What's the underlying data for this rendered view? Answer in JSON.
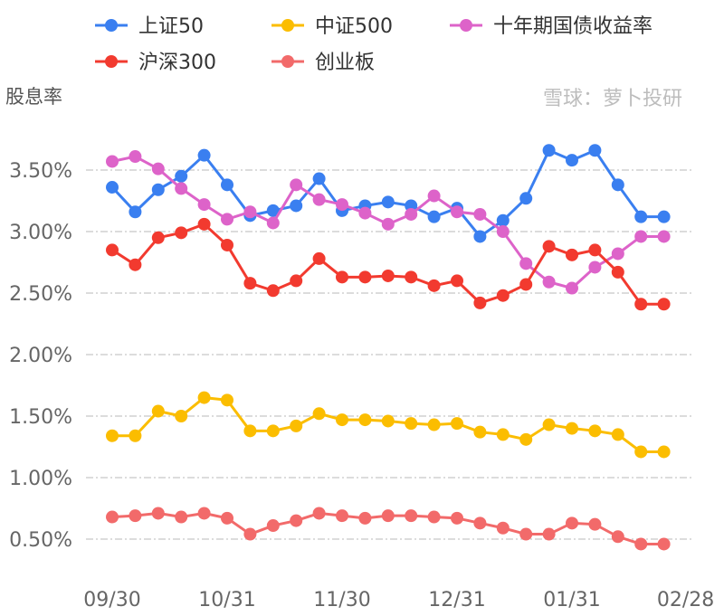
{
  "watermark": "雪球：萝卜投研",
  "chart_data": {
    "type": "line",
    "title": "",
    "xlabel": "",
    "ylabel": "股息率",
    "ylim": [
      0.5,
      3.5
    ],
    "yticks": [
      "0.50%",
      "1.00%",
      "1.50%",
      "2.00%",
      "2.50%",
      "3.00%",
      "3.50%"
    ],
    "ytick_values": [
      0.5,
      1.0,
      1.5,
      2.0,
      2.5,
      3.0,
      3.5
    ],
    "grid": "horizontal dash-dot",
    "legend_position": "top",
    "xticks": [
      {
        "index": 0,
        "label": "09/30"
      },
      {
        "index": 5,
        "label": "10/31"
      },
      {
        "index": 10,
        "label": "11/30"
      },
      {
        "index": 15,
        "label": "12/31"
      },
      {
        "index": 20,
        "label": "01/31"
      },
      {
        "index": 24,
        "label": "02/28"
      }
    ],
    "point_count": 25,
    "series": [
      {
        "name": "上证50",
        "color": "#3a7ff0",
        "values": [
          3.36,
          3.16,
          3.34,
          3.45,
          3.62,
          3.38,
          3.13,
          3.17,
          3.21,
          3.43,
          3.17,
          3.21,
          3.24,
          3.21,
          3.12,
          3.19,
          2.96,
          3.09,
          3.27,
          3.66,
          3.58,
          3.66,
          3.38,
          3.12,
          3.12
        ]
      },
      {
        "name": "中证500",
        "color": "#fbbd00",
        "values": [
          1.34,
          1.34,
          1.54,
          1.5,
          1.65,
          1.63,
          1.38,
          1.38,
          1.42,
          1.52,
          1.47,
          1.47,
          1.46,
          1.44,
          1.43,
          1.44,
          1.37,
          1.35,
          1.31,
          1.43,
          1.4,
          1.38,
          1.35,
          1.21,
          1.21
        ]
      },
      {
        "name": "十年期国债收益率",
        "color": "#dd63c9",
        "values": [
          3.57,
          3.61,
          3.51,
          3.35,
          3.22,
          3.1,
          3.16,
          3.07,
          3.38,
          3.26,
          3.22,
          3.15,
          3.06,
          3.14,
          3.29,
          3.16,
          3.14,
          3.0,
          2.74,
          2.59,
          2.54,
          2.71,
          2.82,
          2.96,
          2.96
        ]
      },
      {
        "name": "沪深300",
        "color": "#f23a2f",
        "values": [
          2.85,
          2.73,
          2.95,
          2.99,
          3.06,
          2.89,
          2.58,
          2.52,
          2.6,
          2.78,
          2.63,
          2.63,
          2.64,
          2.63,
          2.56,
          2.6,
          2.42,
          2.48,
          2.57,
          2.88,
          2.81,
          2.85,
          2.67,
          2.41,
          2.41
        ]
      },
      {
        "name": "创业板",
        "color": "#f26a6a",
        "values": [
          0.68,
          0.69,
          0.71,
          0.68,
          0.71,
          0.67,
          0.54,
          0.61,
          0.65,
          0.71,
          0.69,
          0.67,
          0.69,
          0.69,
          0.68,
          0.67,
          0.63,
          0.59,
          0.54,
          0.54,
          0.63,
          0.62,
          0.52,
          0.46,
          0.46
        ]
      }
    ]
  }
}
